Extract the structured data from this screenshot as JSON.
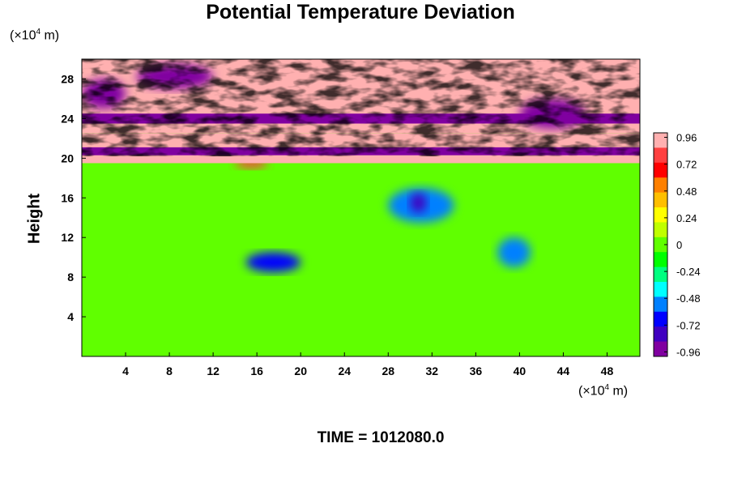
{
  "chart_data": {
    "type": "heatmap",
    "title": "Potential Temperature Deviation",
    "ylabel": "Height",
    "y_unit_prefix": "(×10",
    "y_unit_exp": "4",
    "y_unit_suffix": " m)",
    "x_unit_prefix": "(×10",
    "x_unit_exp": "4",
    "x_unit_suffix": " m)",
    "time_label": "TIME = 1012080.0",
    "xlim": [
      0,
      51
    ],
    "ylim": [
      0,
      30
    ],
    "x_ticks": [
      4,
      8,
      12,
      16,
      20,
      24,
      28,
      32,
      36,
      40,
      44,
      48
    ],
    "x_tick_labels": [
      "4",
      "8",
      "12",
      "16",
      "20",
      "24",
      "28",
      "32",
      "36",
      "40",
      "44",
      "48"
    ],
    "y_ticks": [
      4,
      8,
      12,
      16,
      20,
      24,
      28
    ],
    "y_tick_labels": [
      "4",
      "8",
      "12",
      "16",
      "20",
      "24",
      "28"
    ],
    "colorbar": {
      "range": [
        -1.0,
        1.0
      ],
      "ticks": [
        0.96,
        0.72,
        0.48,
        0.24,
        0,
        -0.24,
        -0.48,
        -0.72,
        -0.96
      ],
      "tick_labels": [
        "0.96",
        "0.72",
        "0.48",
        "0.24",
        "0",
        "-0.24",
        "-0.48",
        "-0.72",
        "-0.96"
      ],
      "colors_top_to_bottom": [
        "#ffb0b0",
        "#ff4040",
        "#ff0000",
        "#ff8000",
        "#ffbf00",
        "#ffff00",
        "#c0ff00",
        "#60ff00",
        "#00ff00",
        "#00ff80",
        "#00ffff",
        "#0080ff",
        "#0000ff",
        "#4000c0",
        "#8000a0"
      ]
    },
    "field_regions": [
      {
        "x": [
          0,
          51
        ],
        "y": [
          0,
          19.5
        ],
        "value": 0.05
      },
      {
        "x": [
          0,
          51
        ],
        "y": [
          13,
          19.5
        ],
        "value": 0.0
      },
      {
        "x": [
          28,
          34
        ],
        "y": [
          13.5,
          17
        ],
        "value": -0.5
      },
      {
        "x": [
          30,
          31.5
        ],
        "y": [
          14.5,
          16.5
        ],
        "value": -0.8
      },
      {
        "x": [
          15,
          20
        ],
        "y": [
          8.5,
          10.5
        ],
        "value": -0.7
      },
      {
        "x": [
          38,
          41
        ],
        "y": [
          9,
          12
        ],
        "value": -0.6
      },
      {
        "x": [
          14,
          17
        ],
        "y": [
          19,
          20
        ],
        "value": 0.8
      },
      {
        "x": [
          0,
          51
        ],
        "y": [
          19.5,
          22.5
        ],
        "value": 0.96
      },
      {
        "x": [
          0,
          51
        ],
        "y": [
          20.3,
          21.1
        ],
        "value": -0.96
      },
      {
        "x": [
          0,
          51
        ],
        "y": [
          22.5,
          30
        ],
        "value": 0.96
      },
      {
        "x": [
          0,
          51
        ],
        "y": [
          23.5,
          24.5
        ],
        "value": -0.96
      },
      {
        "x": [
          5,
          12
        ],
        "y": [
          27,
          29.5
        ],
        "value": -0.96
      },
      {
        "x": [
          40,
          46
        ],
        "y": [
          23,
          26
        ],
        "value": -0.96
      },
      {
        "x": [
          0,
          4
        ],
        "y": [
          25,
          28
        ],
        "value": -0.96
      }
    ]
  }
}
